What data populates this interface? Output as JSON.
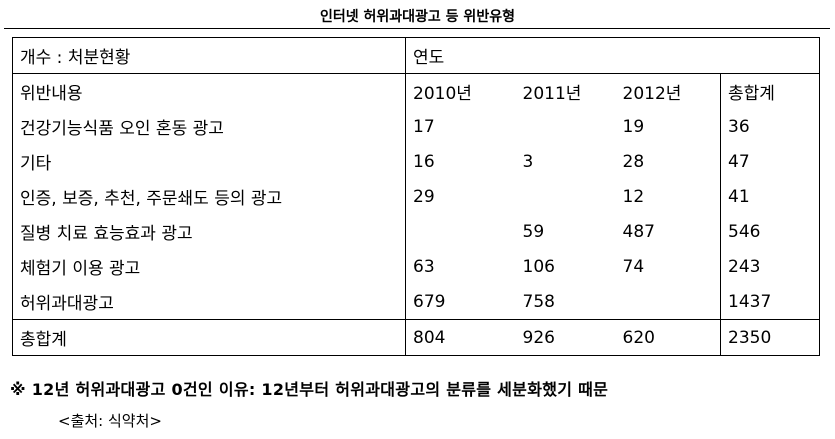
{
  "title": "인터넷 허위과대광고 등 위반유형",
  "table": {
    "corner_label": "개수 : 처분현황",
    "year_group_label": "연도",
    "headers": [
      "위반내용",
      "2010년",
      "2011년",
      "2012년",
      "총합계"
    ],
    "rows": [
      [
        "건강기능식품 오인 혼동 광고",
        "17",
        "",
        "19",
        "36"
      ],
      [
        "기타",
        "16",
        "3",
        "28",
        "47"
      ],
      [
        "인증, 보증, 추천, 주문쇄도 등의 광고",
        "29",
        "",
        "12",
        "41"
      ],
      [
        "질병 치료 효능효과 광고",
        "",
        "59",
        "487",
        "546"
      ],
      [
        "체험기 이용 광고",
        "63",
        "106",
        "74",
        "243"
      ],
      [
        "허위과대광고",
        "679",
        "758",
        "",
        "1437"
      ]
    ],
    "total": [
      "총합계",
      "804",
      "926",
      "620",
      "2350"
    ]
  },
  "note": "※ 12년 허위과대광고 0건인 이유: 12년부터 허위과대광고의 분류를 세분화했기 때문",
  "source": "<출처: 식약처>"
}
